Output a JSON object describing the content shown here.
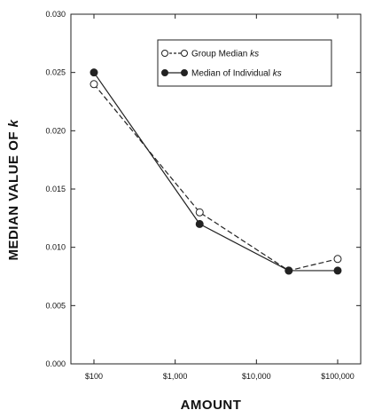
{
  "chart_data": {
    "type": "line",
    "title": "",
    "xlabel": "AMOUNT",
    "ylabel": "MEDIAN VALUE OF k",
    "x_scale": "log",
    "categories": [
      "$100",
      "$1,000",
      "$10,000",
      "$100,000"
    ],
    "x": [
      100,
      1000,
      10000,
      100000
    ],
    "ylim": [
      0,
      0.03
    ],
    "yticks": [
      "0.000",
      "0.005",
      "0.010",
      "0.015",
      "0.020",
      "0.025",
      "0.030"
    ],
    "grid": false,
    "legend_position": "top-right",
    "series": [
      {
        "name": "Group Median ks",
        "marker": "open-circle",
        "line": "dashed",
        "x": [
          100,
          2000,
          25000,
          100000
        ],
        "values": [
          0.024,
          0.013,
          0.008,
          0.009
        ]
      },
      {
        "name": "Median of Individual ks",
        "marker": "filled-circle",
        "line": "solid",
        "x": [
          100,
          2000,
          25000,
          100000
        ],
        "values": [
          0.025,
          0.012,
          0.008,
          0.008
        ]
      }
    ]
  }
}
